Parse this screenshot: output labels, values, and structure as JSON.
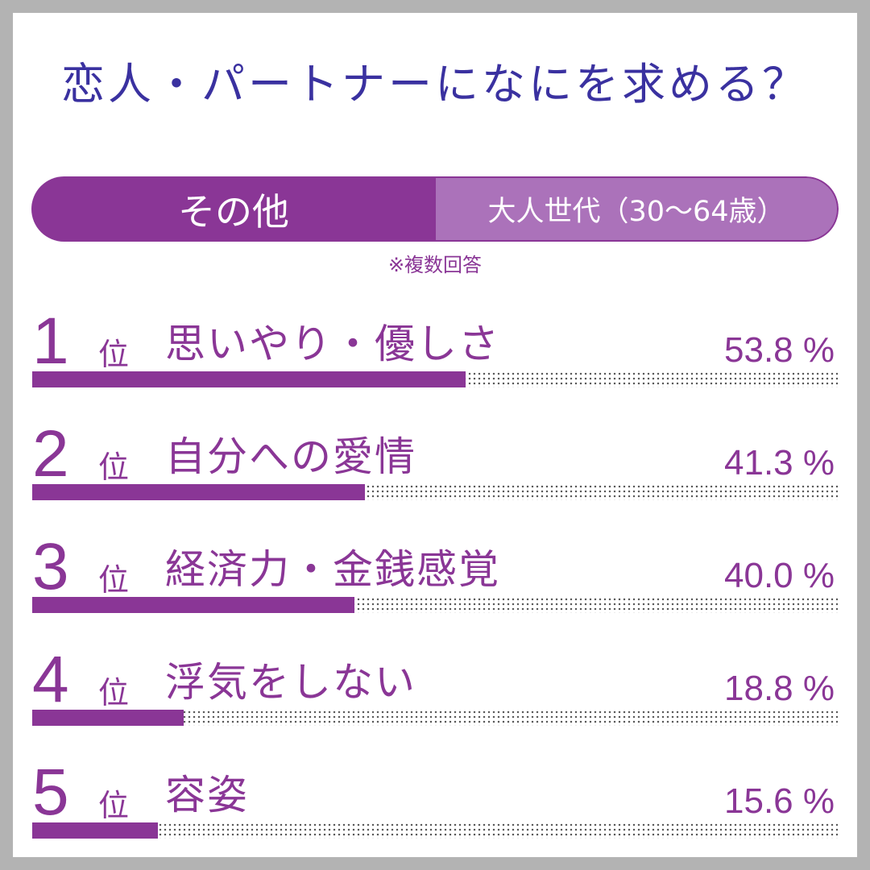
{
  "title": "恋人・パートナーになにを求める？",
  "tabs": {
    "active": "その他",
    "inactive": "大人世代（30～64歳）"
  },
  "note": "※複数回答",
  "rank_suffix": "位",
  "colors": {
    "accent": "#8a3696",
    "accent_light": "#ab72ba",
    "title": "#3a31a0",
    "background": "#b3b3b3",
    "card": "#ffffff"
  },
  "chart_data": {
    "type": "bar",
    "orientation": "horizontal",
    "title": "恋人・パートナーになにを求める？",
    "categories": [
      "思いやり・優しさ",
      "自分への愛情",
      "経済力・金銭感覚",
      "浮気をしない",
      "容姿"
    ],
    "ranks": [
      "1",
      "2",
      "3",
      "4",
      "5"
    ],
    "values": [
      53.8,
      41.3,
      40.0,
      18.8,
      15.6
    ],
    "value_labels": [
      "53.8 %",
      "41.3 %",
      "40.0 %",
      "18.8 %",
      "15.6 %"
    ],
    "unit": "%",
    "xlim": [
      0,
      100
    ]
  }
}
